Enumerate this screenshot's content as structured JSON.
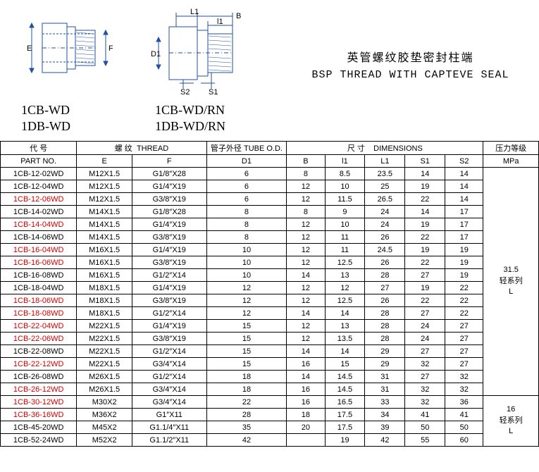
{
  "titles": {
    "cn": "英管螺纹胶垫密封柱端",
    "en": "BSP THREAD WITH CAPTEVE SEAL"
  },
  "drawings": {
    "left": {
      "labels": {
        "E": "E",
        "F": "F"
      }
    },
    "right": {
      "labels": {
        "L1": "L1",
        "B": "B",
        "l1": "l1",
        "D1": "D1",
        "S2": "S2",
        "S1": "S1"
      }
    }
  },
  "models": {
    "col1": [
      "1CB-WD",
      "1DB-WD"
    ],
    "col2": [
      "1CB-WD/RN",
      "1DB-WD/RN"
    ]
  },
  "headers": {
    "part_cn": "代  号",
    "part_en": "PART  NO.",
    "thread_cn": "螺  纹",
    "thread_en": "THREAD",
    "E": "E",
    "F": "F",
    "tube_cn": "管子外径",
    "tube_en": "TUBE O.D.",
    "D1": "D1",
    "dim_cn": "尺  寸",
    "dim_en": "DIMENSIONS",
    "B": "B",
    "l1": "l1",
    "L1": "L1",
    "S1": "S1",
    "S2": "S2",
    "press_cn": "压力等级",
    "press_en": "MPa"
  },
  "rows": [
    {
      "part": "1CB-12-02WD",
      "red": false,
      "E": "M12X1.5",
      "F": "G1/8″X28",
      "D1": "6",
      "B": "8",
      "l1": "8.5",
      "L1": "23.5",
      "S1": "14",
      "S2": "14"
    },
    {
      "part": "1CB-12-04WD",
      "red": false,
      "E": "M12X1.5",
      "F": "G1/4″X19",
      "D1": "6",
      "B": "12",
      "l1": "10",
      "L1": "25",
      "S1": "19",
      "S2": "14"
    },
    {
      "part": "1CB-12-06WD",
      "red": true,
      "E": "M12X1.5",
      "F": "G3/8″X19",
      "D1": "6",
      "B": "12",
      "l1": "11.5",
      "L1": "26.5",
      "S1": "22",
      "S2": "14"
    },
    {
      "part": "1CB-14-02WD",
      "red": false,
      "E": "M14X1.5",
      "F": "G1/8″X28",
      "D1": "8",
      "B": "8",
      "l1": "9",
      "L1": "24",
      "S1": "14",
      "S2": "17"
    },
    {
      "part": "1CB-14-04WD",
      "red": true,
      "E": "M14X1.5",
      "F": "G1/4″X19",
      "D1": "8",
      "B": "12",
      "l1": "10",
      "L1": "24",
      "S1": "19",
      "S2": "17"
    },
    {
      "part": "1CB-14-06WD",
      "red": false,
      "E": "M14X1.5",
      "F": "G3/8″X19",
      "D1": "8",
      "B": "12",
      "l1": "11",
      "L1": "26",
      "S1": "22",
      "S2": "17"
    },
    {
      "part": "1CB-16-04WD",
      "red": true,
      "E": "M16X1.5",
      "F": "G1/4″X19",
      "D1": "10",
      "B": "12",
      "l1": "11",
      "L1": "24.5",
      "S1": "19",
      "S2": "19"
    },
    {
      "part": "1CB-16-06WD",
      "red": true,
      "E": "M16X1.5",
      "F": "G3/8″X19",
      "D1": "10",
      "B": "12",
      "l1": "12.5",
      "L1": "26",
      "S1": "22",
      "S2": "19"
    },
    {
      "part": "1CB-16-08WD",
      "red": false,
      "E": "M16X1.5",
      "F": "G1/2″X14",
      "D1": "10",
      "B": "14",
      "l1": "13",
      "L1": "28",
      "S1": "27",
      "S2": "19"
    },
    {
      "part": "1CB-18-04WD",
      "red": false,
      "E": "M18X1.5",
      "F": "G1/4″X19",
      "D1": "12",
      "B": "12",
      "l1": "12",
      "L1": "27",
      "S1": "19",
      "S2": "22"
    },
    {
      "part": "1CB-18-06WD",
      "red": true,
      "E": "M18X1.5",
      "F": "G3/8″X19",
      "D1": "12",
      "B": "12",
      "l1": "12.5",
      "L1": "26",
      "S1": "22",
      "S2": "22"
    },
    {
      "part": "1CB-18-08WD",
      "red": true,
      "E": "M18X1.5",
      "F": "G1/2″X14",
      "D1": "12",
      "B": "14",
      "l1": "14",
      "L1": "28",
      "S1": "27",
      "S2": "22"
    },
    {
      "part": "1CB-22-04WD",
      "red": true,
      "E": "M22X1.5",
      "F": "G1/4″X19",
      "D1": "15",
      "B": "12",
      "l1": "13",
      "L1": "28",
      "S1": "24",
      "S2": "27"
    },
    {
      "part": "1CB-22-06WD",
      "red": true,
      "E": "M22X1.5",
      "F": "G3/8″X19",
      "D1": "15",
      "B": "12",
      "l1": "13.5",
      "L1": "28",
      "S1": "24",
      "S2": "27"
    },
    {
      "part": "1CB-22-08WD",
      "red": false,
      "E": "M22X1.5",
      "F": "G1/2″X14",
      "D1": "15",
      "B": "14",
      "l1": "14",
      "L1": "29",
      "S1": "27",
      "S2": "27"
    },
    {
      "part": "1CB-22-12WD",
      "red": true,
      "E": "M22X1.5",
      "F": "G3/4″X14",
      "D1": "15",
      "B": "16",
      "l1": "15",
      "L1": "29",
      "S1": "32",
      "S2": "27"
    },
    {
      "part": "1CB-26-08WD",
      "red": false,
      "E": "M26X1.5",
      "F": "G1/2″X14",
      "D1": "18",
      "B": "14",
      "l1": "14.5",
      "L1": "31",
      "S1": "27",
      "S2": "32"
    },
    {
      "part": "1CB-26-12WD",
      "red": true,
      "E": "M26X1.5",
      "F": "G3/4″X14",
      "D1": "18",
      "B": "16",
      "l1": "14.5",
      "L1": "31",
      "S1": "32",
      "S2": "32"
    },
    {
      "part": "1CB-30-12WD",
      "red": true,
      "E": "M30X2",
      "F": "G3/4″X14",
      "D1": "22",
      "B": "16",
      "l1": "16.5",
      "L1": "33",
      "S1": "32",
      "S2": "36"
    },
    {
      "part": "1CB-36-16WD",
      "red": true,
      "E": "M36X2",
      "F": "G1″X11",
      "D1": "28",
      "B": "18",
      "l1": "17.5",
      "L1": "34",
      "S1": "41",
      "S2": "41"
    },
    {
      "part": "1CB-45-20WD",
      "red": false,
      "E": "M45X2",
      "F": "G1.1/4″X11",
      "D1": "35",
      "B": "20",
      "l1": "17.5",
      "L1": "39",
      "S1": "50",
      "S2": "50"
    },
    {
      "part": "1CB-52-24WD",
      "red": false,
      "E": "M52X2",
      "F": "G1.1/2″X11",
      "D1": "42",
      "B": "",
      "l1": "19",
      "L1": "42",
      "S1": "55",
      "S2": "60"
    }
  ],
  "pressureGroups": [
    {
      "rowspan": 18,
      "val": "31.5",
      "series_cn": "轻系列",
      "series_en": "L"
    },
    {
      "rowspan": 4,
      "val": "16",
      "series_cn": "轻系列",
      "series_en": "L"
    }
  ]
}
